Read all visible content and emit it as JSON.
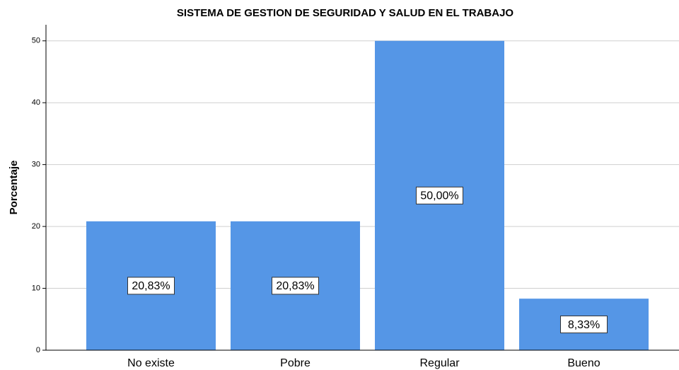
{
  "chart_data": {
    "type": "bar",
    "title": "SISTEMA DE GESTION DE SEGURIDAD Y SALUD EN EL TRABAJO",
    "y_label": "Porcentaje",
    "categories": [
      "No existe",
      "Pobre",
      "Regular",
      "Bueno"
    ],
    "values": [
      20.83,
      20.83,
      50,
      8.33
    ],
    "value_labels": [
      "20,83%",
      "20,83%",
      "50,00%",
      "8,33%"
    ],
    "color": "#5596e6",
    "ylim": [
      0,
      52.6
    ],
    "yticks": [
      0,
      10,
      20,
      30,
      40,
      50
    ],
    "grid": true
  }
}
